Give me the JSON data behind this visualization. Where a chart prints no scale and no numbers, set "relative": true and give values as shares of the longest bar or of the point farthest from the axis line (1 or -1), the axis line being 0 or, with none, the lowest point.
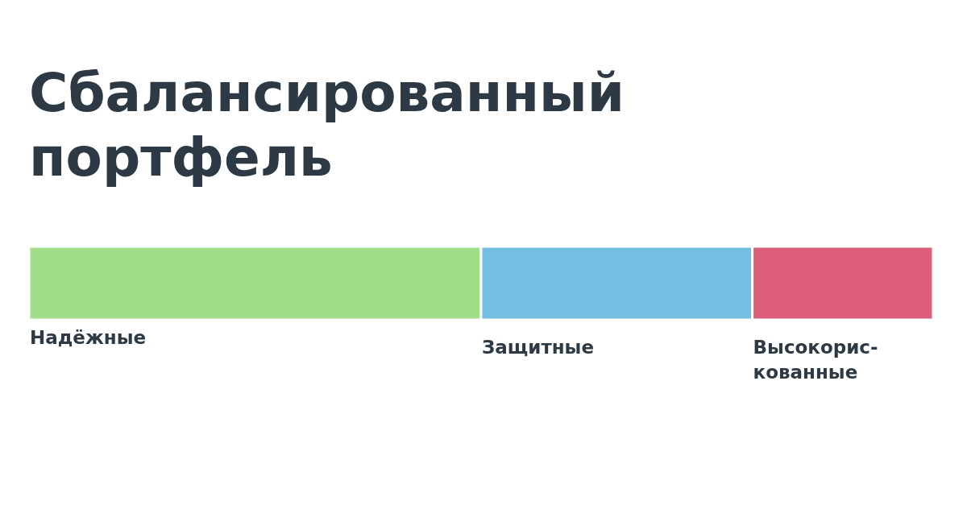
{
  "chart_data": {
    "type": "bar",
    "title": "Сбалансированный портфель",
    "orientation": "horizontal",
    "stacked": true,
    "relative": true,
    "categories": [
      null
    ],
    "series": [
      {
        "name": "Надёжные",
        "color": "#a0de8a",
        "values": [
          0.5
        ]
      },
      {
        "name": "Защитные",
        "color": "#74bde3",
        "values": [
          0.3
        ]
      },
      {
        "name": "Высокорис-кованные",
        "color": "#dc5e79",
        "values": [
          0.2
        ]
      }
    ]
  }
}
